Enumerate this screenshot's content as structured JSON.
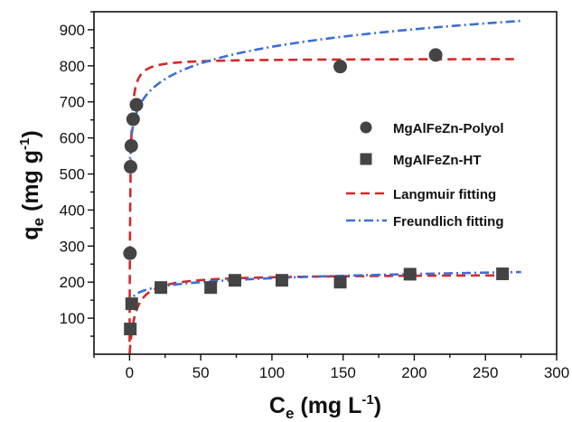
{
  "chart_data": {
    "type": "scatter",
    "title": "",
    "xlabel": {
      "main": "C",
      "sub": "e",
      "unit_pre": " (mg L",
      "sup": "-1",
      "unit_post": ")"
    },
    "ylabel": {
      "main": "q",
      "sub": "e",
      "unit_pre": " (mg g",
      "sup": "-1",
      "unit_post": ")"
    },
    "xlim": [
      -25,
      300
    ],
    "ylim": [
      0,
      950
    ],
    "xticks": [
      0,
      50,
      100,
      150,
      200,
      250,
      300
    ],
    "yticks": [
      100,
      200,
      300,
      400,
      500,
      600,
      700,
      800,
      900
    ],
    "grid": false,
    "legend_position": "right",
    "series": [
      {
        "name": "MgAlFeZn-Polyol",
        "kind": "points",
        "marker": "circle",
        "color": "#444444",
        "x": [
          0.3,
          0.7,
          1.2,
          2.5,
          4.8,
          148,
          215
        ],
        "y": [
          280,
          520,
          578,
          652,
          692,
          798,
          830
        ]
      },
      {
        "name": "MgAlFeZn-HT",
        "kind": "points",
        "marker": "square",
        "color": "#444444",
        "x": [
          0.5,
          1.5,
          22,
          57,
          74,
          107,
          148,
          197,
          262
        ],
        "y": [
          70,
          140,
          185,
          185,
          205,
          205,
          200,
          222,
          223
        ]
      },
      {
        "name": "Langmuir fitting",
        "kind": "curve",
        "style": "dash",
        "color": "#d62728",
        "model": "langmuir",
        "fits": [
          {
            "qmax": 820,
            "k": 2.2,
            "xmin": 0.02,
            "xmax": 270
          },
          {
            "qmax": 222,
            "k": 0.25,
            "xmin": 0.02,
            "xmax": 270
          }
        ]
      },
      {
        "name": "Freundlich fitting",
        "kind": "curve",
        "style": "dashdot",
        "color": "#3b6fd6",
        "model": "freundlich",
        "fits": [
          {
            "kf": 590,
            "n": 12.5,
            "xmin": 0.15,
            "xmax": 275
          },
          {
            "kf": 148,
            "n": 13.0,
            "xmin": 0.15,
            "xmax": 275
          }
        ]
      }
    ]
  }
}
